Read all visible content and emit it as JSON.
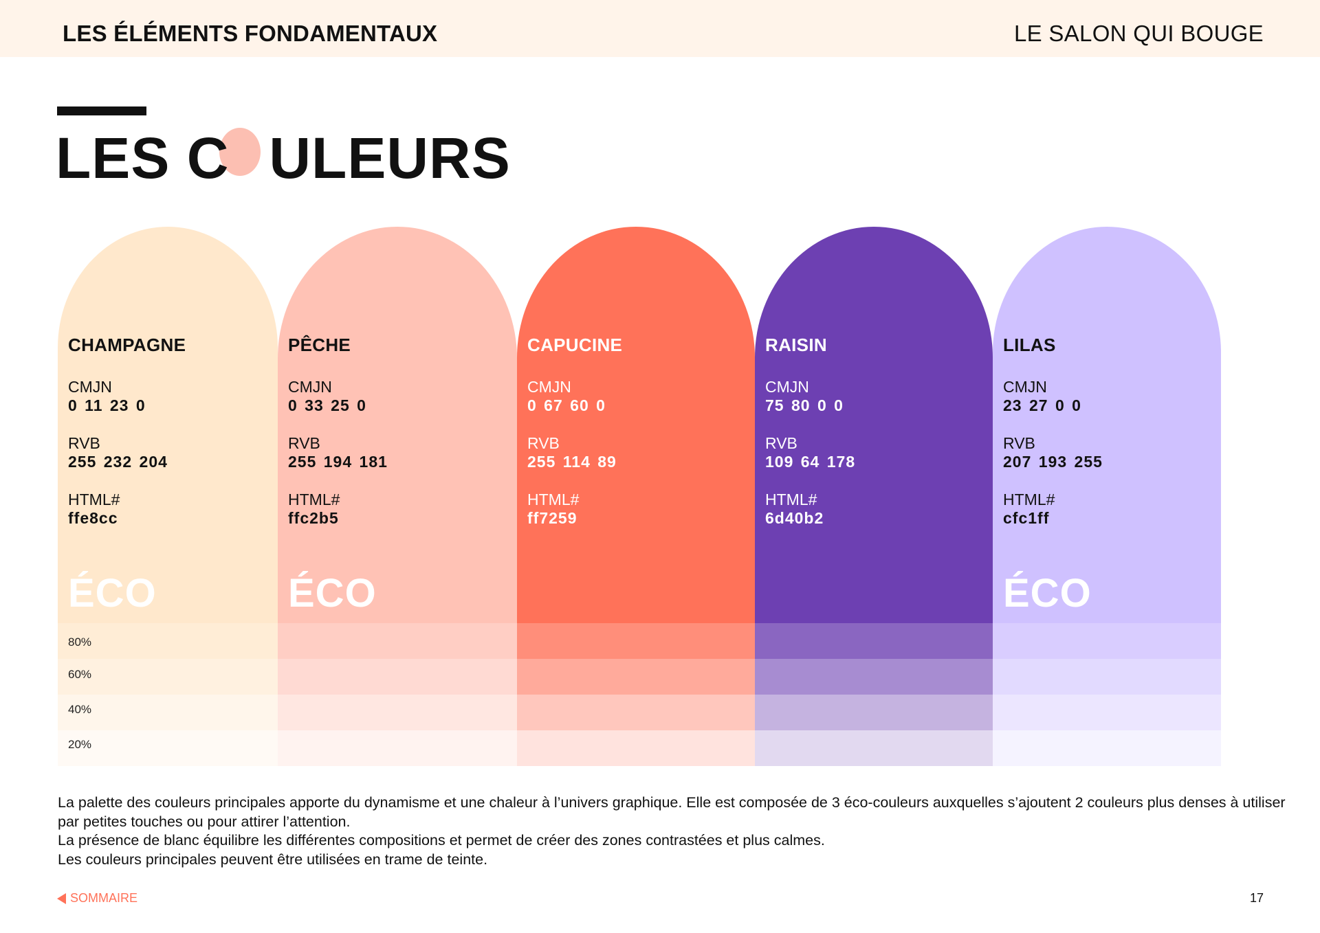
{
  "header": {
    "section_title": "LES ÉLÉMENTS FONDAMENTAUX",
    "brand": "LE SALON QUI BOUGE"
  },
  "page": {
    "title_part1": "LES C",
    "title_part2": "ULEURS"
  },
  "palette": {
    "field_labels": {
      "cmyk": "CMJN",
      "rgb": "RVB",
      "html": "HTML#"
    },
    "eco_label": "ÉCO",
    "tint_levels": [
      "80%",
      "60%",
      "40%",
      "20%"
    ],
    "colors": [
      {
        "name": "CHAMPAGNE",
        "cmyk": "0 11 23 0",
        "rgb": "255 232 204",
        "html": "ffe8cc",
        "hex": "#ffe8cc",
        "text_color": "#111111",
        "eco": true
      },
      {
        "name": "PÊCHE",
        "cmyk": "0 33 25 0",
        "rgb": "255 194 181",
        "html": "ffc2b5",
        "hex": "#ffc2b5",
        "text_color": "#111111",
        "eco": true
      },
      {
        "name": "CAPUCINE",
        "cmyk": "0 67 60 0",
        "rgb": "255 114 89",
        "html": "ff7259",
        "hex": "#ff7259",
        "text_color": "#ffffff",
        "eco": false
      },
      {
        "name": "RAISIN",
        "cmyk": "75 80  0 0",
        "rgb": "109 64 178",
        "html": "6d40b2",
        "hex": "#6d40b2",
        "text_color": "#ffffff",
        "eco": false
      },
      {
        "name": "LILAS",
        "cmyk": "23 27 0 0",
        "rgb": "207 193 255",
        "html": "cfc1ff",
        "hex": "#cfc1ff",
        "text_color": "#111111",
        "eco": true
      }
    ]
  },
  "description": {
    "lines": [
      "La palette des couleurs principales apporte du dynamisme et une chaleur à l’univers graphique. Elle est composée de 3 éco-couleurs auxquelles s’ajoutent 2 couleurs plus denses à utiliser par petites touches ou pour attirer l’attention.",
      "La présence de blanc équilibre les différentes compositions et permet de créer des zones contrastées et plus calmes.",
      "Les couleurs principales peuvent être utilisées en trame de teinte."
    ]
  },
  "footer": {
    "back_link": "SOMMAIRE",
    "page_number": "17"
  }
}
